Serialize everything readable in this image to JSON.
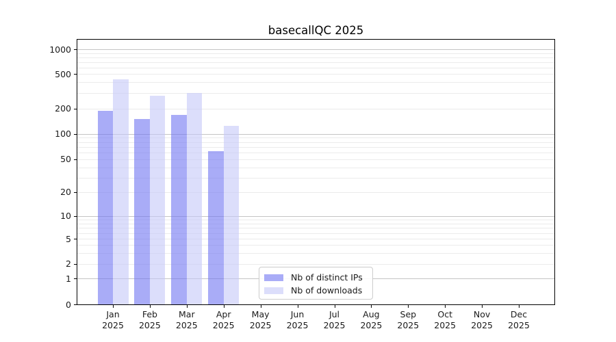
{
  "chart_data": {
    "type": "bar",
    "title": "basecallQC 2025",
    "categories": [
      "Jan 2025",
      "Feb 2025",
      "Mar 2025",
      "Apr 2025",
      "May 2025",
      "Jun 2025",
      "Jul 2025",
      "Aug 2025",
      "Sep 2025",
      "Oct 2025",
      "Nov 2025",
      "Dec 2025"
    ],
    "series": [
      {
        "name": "Nb of distinct IPs",
        "color_hex_on_white": "#a9acf7",
        "color_fill": "rgba(112,117,242,0.6)",
        "values": [
          190,
          150,
          168,
          62,
          0,
          0,
          0,
          0,
          0,
          0,
          0,
          0
        ]
      },
      {
        "name": "Nb of downloads",
        "color_hex_on_white": "#dcdefb",
        "color_fill": "rgba(197,200,248,0.6)",
        "values": [
          430,
          280,
          300,
          125,
          0,
          0,
          0,
          0,
          0,
          0,
          0,
          0
        ]
      }
    ],
    "xlabel": "",
    "ylabel": "",
    "yticks": [
      0,
      1,
      2,
      5,
      10,
      20,
      50,
      100,
      200,
      500,
      1000
    ],
    "ylim": [
      0,
      1300
    ],
    "yscale": "log-like, compressed toward zero",
    "grid": "horizontal only, minor light / major darker at 1,10,100,1000",
    "legend_position": "inside plot, lower center",
    "colors": {
      "spine": "#000000",
      "grid_minor": "#ebebeb",
      "grid_major": "#c4c4c4",
      "text": "#1a1a1a",
      "background": "#ffffff"
    }
  }
}
